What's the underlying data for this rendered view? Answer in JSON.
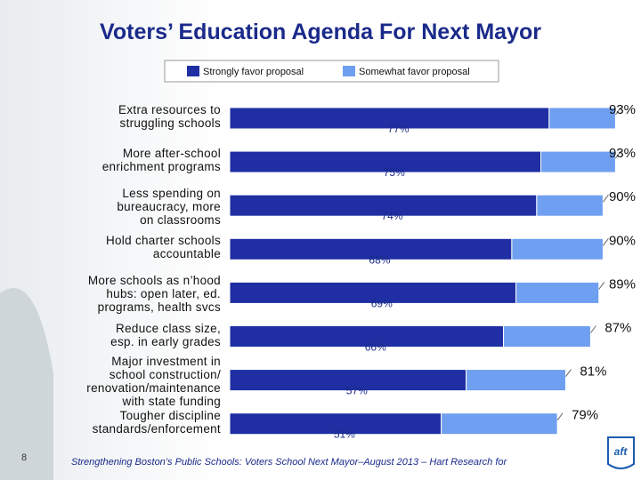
{
  "chart_data": {
    "type": "stacked-barh",
    "title": "Voters’ Education Agenda For Next Mayor",
    "categories": [
      "Extra resources to\nstruggling schools",
      "More after-school\nenrichment programs",
      "Less spending on\nbureaucracy, more\non classrooms",
      "Hold charter schools\naccountable",
      "More schools as n’hood\nhubs: open  later, ed.\nprograms,  health svcs",
      "Reduce class size,\nesp. in early grades",
      "Major investment in\nschool construction/\nrenovation/maintenance\nwith state funding",
      "Tougher discipline\nstandards/enforcement"
    ],
    "series": [
      {
        "name": "Strongly favor proposal",
        "color": "#1f2fa3",
        "values": [
          77,
          75,
          74,
          68,
          69,
          66,
          57,
          51
        ],
        "value_labels": [
          "77%",
          "75%",
          "74%",
          "68%",
          "69%",
          "66%",
          "57%",
          "51%"
        ]
      },
      {
        "name": "Somewhat favor proposal",
        "color": "#6f9ff0",
        "values": [
          16,
          18,
          16,
          22,
          20,
          21,
          24,
          28
        ]
      }
    ],
    "totals": {
      "values": [
        93,
        93,
        90,
        90,
        89,
        87,
        81,
        79
      ],
      "value_labels": [
        "93%",
        "93%",
        "90%",
        "90%",
        "89%",
        "87%",
        "81%",
        "79%"
      ]
    },
    "xlim": [
      0,
      100
    ]
  },
  "footnote": "Strengthening Boston’s Public Schools: Voters School Next Mayor–August 2013 – Hart Research for",
  "page_number": "8"
}
